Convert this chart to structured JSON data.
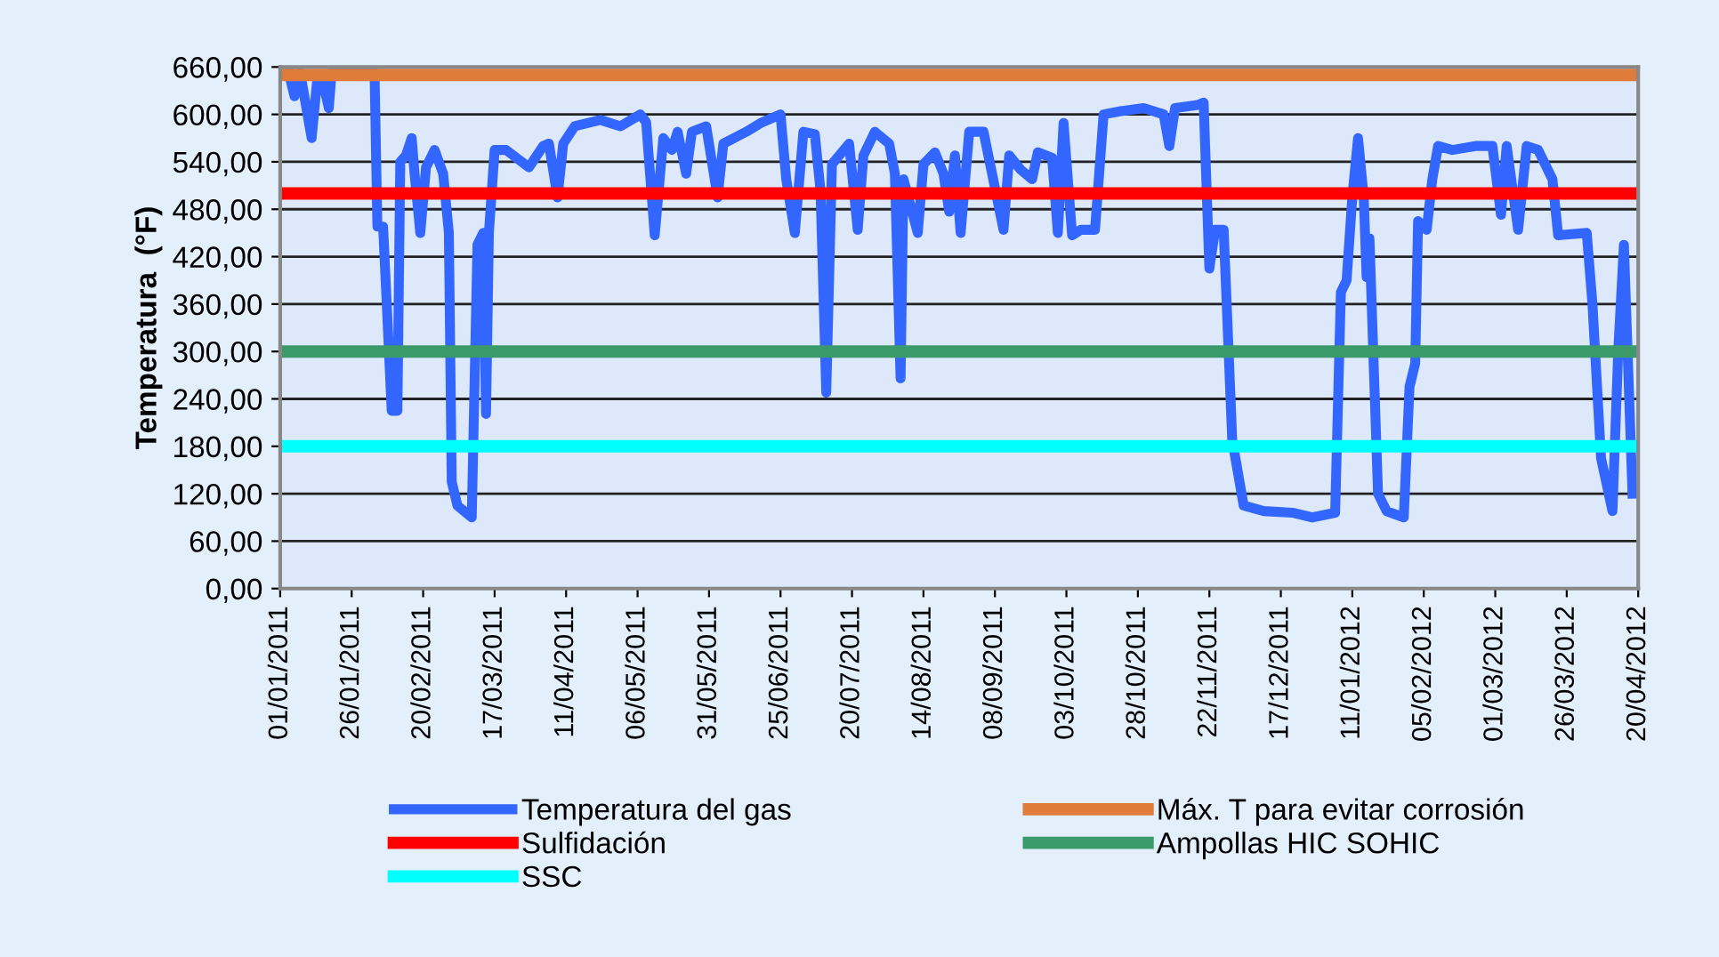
{
  "chart_data": {
    "type": "line",
    "ylabel": "Temperatura  (°F)",
    "legend": "bottom",
    "grid": "y",
    "marker": "none",
    "line_style": "solid",
    "xlim": [
      "2011-01-01",
      "2012-04-20"
    ],
    "xticks": [
      {
        "value": "2011-01-01",
        "label": "01/01/2011"
      },
      {
        "value": "2011-01-26",
        "label": "26/01/2011"
      },
      {
        "value": "2011-02-20",
        "label": "20/02/2011"
      },
      {
        "value": "2011-03-17",
        "label": "17/03/2011"
      },
      {
        "value": "2011-04-11",
        "label": "11/04/2011"
      },
      {
        "value": "2011-05-06",
        "label": "06/05/2011"
      },
      {
        "value": "2011-05-31",
        "label": "31/05/2011"
      },
      {
        "value": "2011-06-25",
        "label": "25/06/2011"
      },
      {
        "value": "2011-07-20",
        "label": "20/07/2011"
      },
      {
        "value": "2011-08-14",
        "label": "14/08/2011"
      },
      {
        "value": "2011-09-08",
        "label": "08/09/2011"
      },
      {
        "value": "2011-10-03",
        "label": "03/10/2011"
      },
      {
        "value": "2011-10-28",
        "label": "28/10/2011"
      },
      {
        "value": "2011-11-22",
        "label": "22/11/2011"
      },
      {
        "value": "2011-12-17",
        "label": "17/12/2011"
      },
      {
        "value": "2012-01-11",
        "label": "11/01/2012"
      },
      {
        "value": "2012-02-05",
        "label": "05/02/2012"
      },
      {
        "value": "2012-03-01",
        "label": "01/03/2012"
      },
      {
        "value": "2012-03-26",
        "label": "26/03/2012"
      },
      {
        "value": "2012-04-20",
        "label": "20/04/2012"
      }
    ],
    "ylim": [
      0,
      660
    ],
    "yticks": [
      {
        "value": 0,
        "label": "0,00"
      },
      {
        "value": 60,
        "label": "60,00"
      },
      {
        "value": 120,
        "label": "120,00"
      },
      {
        "value": 180,
        "label": "180,00"
      },
      {
        "value": 240,
        "label": "240,00"
      },
      {
        "value": 300,
        "label": "300,00"
      },
      {
        "value": 360,
        "label": "360,00"
      },
      {
        "value": 420,
        "label": "420,00"
      },
      {
        "value": 480,
        "label": "480,00"
      },
      {
        "value": 540,
        "label": "540,00"
      },
      {
        "value": 600,
        "label": "600,00"
      },
      {
        "value": 660,
        "label": "660,00"
      }
    ],
    "series": [
      {
        "name": "Temperatura del gas",
        "color": "#3366ff",
        "x": [
          "2011-01-04",
          "2011-01-06",
          "2011-01-08",
          "2011-01-12",
          "2011-01-14",
          "2011-01-16",
          "2011-01-18",
          "2011-01-19",
          "2011-02-03",
          "2011-02-04",
          "2011-02-06",
          "2011-02-09",
          "2011-02-11",
          "2011-02-12",
          "2011-02-14",
          "2011-02-16",
          "2011-02-17",
          "2011-02-19",
          "2011-02-21",
          "2011-02-24",
          "2011-02-27",
          "2011-03-01",
          "2011-03-02",
          "2011-03-04",
          "2011-03-09",
          "2011-03-11",
          "2011-03-13",
          "2011-03-14",
          "2011-03-15",
          "2011-03-17",
          "2011-03-21",
          "2011-03-29",
          "2011-04-03",
          "2011-04-05",
          "2011-04-08",
          "2011-04-10",
          "2011-04-14",
          "2011-04-23",
          "2011-04-30",
          "2011-05-07",
          "2011-05-09",
          "2011-05-12",
          "2011-05-15",
          "2011-05-18",
          "2011-05-20",
          "2011-05-23",
          "2011-05-25",
          "2011-05-30",
          "2011-06-03",
          "2011-06-05",
          "2011-06-13",
          "2011-06-18",
          "2011-06-25",
          "2011-06-27",
          "2011-06-30",
          "2011-07-03",
          "2011-07-07",
          "2011-07-09",
          "2011-07-11",
          "2011-07-13",
          "2011-07-19",
          "2011-07-22",
          "2011-07-24",
          "2011-07-28",
          "2011-08-02",
          "2011-08-04",
          "2011-08-06",
          "2011-08-07",
          "2011-08-12",
          "2011-08-14",
          "2011-08-18",
          "2011-08-21",
          "2011-08-23",
          "2011-08-25",
          "2011-08-27",
          "2011-08-30",
          "2011-09-04",
          "2011-09-11",
          "2011-09-13",
          "2011-09-17",
          "2011-09-21",
          "2011-09-23",
          "2011-09-28",
          "2011-09-30",
          "2011-10-02",
          "2011-10-05",
          "2011-10-08",
          "2011-10-13",
          "2011-10-16",
          "2011-10-22",
          "2011-10-30",
          "2011-11-06",
          "2011-11-08",
          "2011-11-10",
          "2011-11-18",
          "2011-11-20",
          "2011-11-22",
          "2011-11-24",
          "2011-11-27",
          "2011-11-30",
          "2011-12-04",
          "2011-12-11",
          "2011-12-21",
          "2011-12-28",
          "2012-01-05",
          "2012-01-07",
          "2012-01-09",
          "2012-01-11",
          "2012-01-13",
          "2012-01-15",
          "2012-01-16",
          "2012-01-17",
          "2012-01-20",
          "2012-01-23",
          "2012-01-29",
          "2012-01-31",
          "2012-02-02",
          "2012-02-03",
          "2012-02-06",
          "2012-02-08",
          "2012-02-10",
          "2012-02-15",
          "2012-02-23",
          "2012-02-29",
          "2012-03-03",
          "2012-03-05",
          "2012-03-09",
          "2012-03-12",
          "2012-03-16",
          "2012-03-21",
          "2012-03-23",
          "2012-04-02",
          "2012-04-04",
          "2012-04-07",
          "2012-04-11",
          "2012-04-13",
          "2012-04-15",
          "2012-04-18"
        ],
        "values": [
          653,
          623,
          653,
          570,
          646,
          640,
          608,
          653,
          653,
          458,
          458,
          225,
          225,
          540,
          548,
          570,
          525,
          450,
          533,
          555,
          525,
          450,
          135,
          105,
          90,
          435,
          450,
          221,
          450,
          555,
          555,
          533,
          560,
          563,
          495,
          563,
          585,
          593,
          585,
          600,
          590,
          447,
          570,
          555,
          578,
          525,
          578,
          585,
          495,
          563,
          578,
          589,
          600,
          518,
          450,
          578,
          575,
          503,
          248,
          537,
          563,
          454,
          548,
          578,
          563,
          525,
          266,
          518,
          450,
          537,
          552,
          525,
          477,
          548,
          450,
          578,
          578,
          454,
          548,
          530,
          518,
          552,
          545,
          450,
          589,
          447,
          454,
          454,
          600,
          604,
          608,
          600,
          560,
          608,
          612,
          615,
          405,
          454,
          454,
          188,
          105,
          98,
          96,
          90,
          96,
          375,
          390,
          495,
          570,
          495,
          394,
          443,
          120,
          98,
          90,
          255,
          285,
          465,
          454,
          518,
          560,
          555,
          560,
          560,
          473,
          560,
          454,
          560,
          555,
          518,
          447,
          450,
          360,
          165,
          98,
          300,
          435,
          120
        ]
      },
      {
        "name": "Máx. T para evitar corrosión",
        "color": "#e07b39",
        "x": [
          "2011-01-01",
          "2012-04-20"
        ],
        "values": [
          650,
          650
        ]
      },
      {
        "name": "Sulfidación",
        "color": "#ff0000",
        "x": [
          "2011-01-01",
          "2012-04-20"
        ],
        "values": [
          500,
          500
        ]
      },
      {
        "name": "Ampollas HIC SOHIC",
        "color": "#3a9a6a",
        "x": [
          "2011-01-01",
          "2012-04-20"
        ],
        "values": [
          300,
          300
        ]
      },
      {
        "name": "SSC",
        "color": "#00ffff",
        "x": [
          "2011-01-01",
          "2012-04-20"
        ],
        "values": [
          180,
          180
        ]
      }
    ]
  }
}
